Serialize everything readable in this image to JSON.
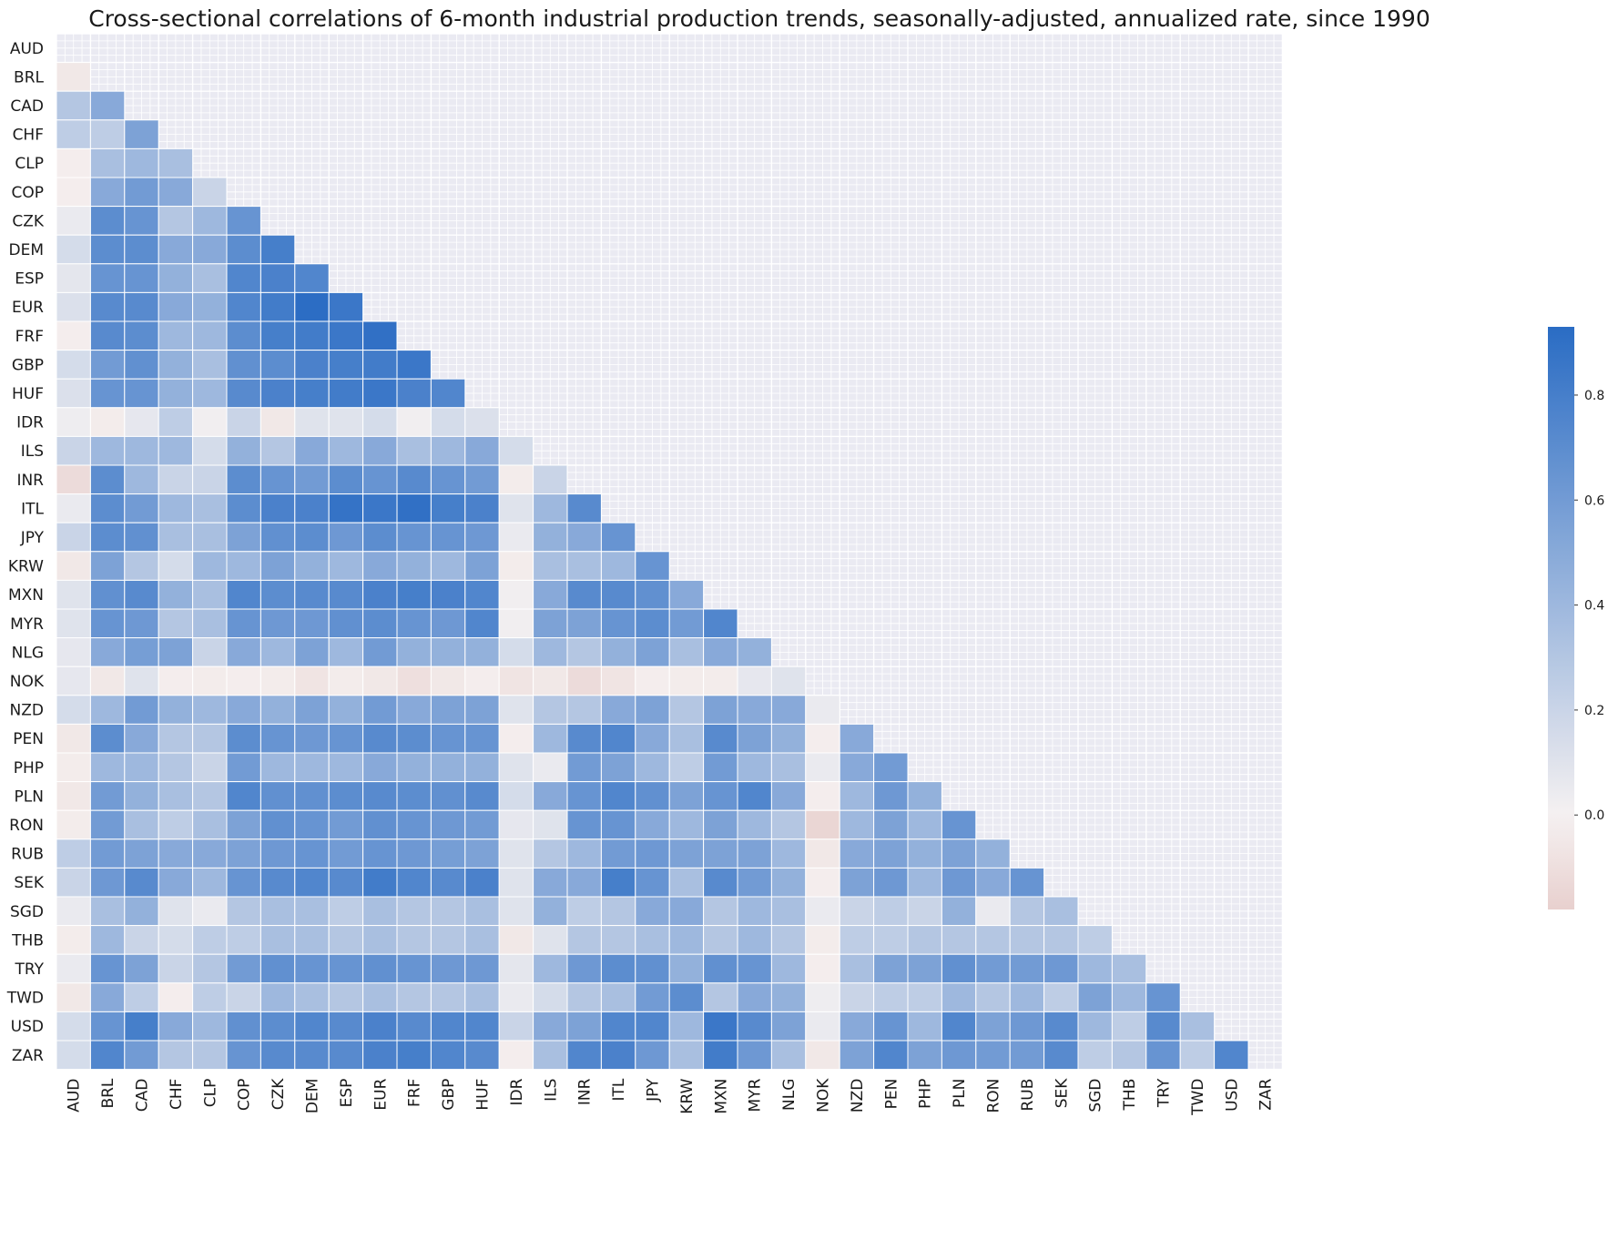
{
  "chart_data": {
    "type": "heatmap",
    "title": "Cross-sectional correlations of 6-month industrial production trends, seasonally-adjusted, annualized rate, since 1990",
    "labels": [
      "AUD",
      "BRL",
      "CAD",
      "CHF",
      "CLP",
      "COP",
      "CZK",
      "DEM",
      "ESP",
      "EUR",
      "FRF",
      "GBP",
      "HUF",
      "IDR",
      "ILS",
      "INR",
      "ITL",
      "JPY",
      "KRW",
      "MXN",
      "MYR",
      "NLG",
      "NOK",
      "NZD",
      "PEN",
      "PHP",
      "PLN",
      "RON",
      "RUB",
      "SEK",
      "SGD",
      "THB",
      "TRY",
      "TWD",
      "USD",
      "ZAR"
    ],
    "mask": "upper-triangle-including-diagonal",
    "matrix_rows": [
      [],
      [
        -0.05
      ],
      [
        0.3,
        0.5
      ],
      [
        0.25,
        0.25,
        0.55
      ],
      [
        -0.02,
        0.35,
        0.4,
        0.35
      ],
      [
        -0.02,
        0.5,
        0.6,
        0.5,
        0.2
      ],
      [
        0.05,
        0.7,
        0.65,
        0.3,
        0.4,
        0.65
      ],
      [
        0.15,
        0.7,
        0.7,
        0.5,
        0.5,
        0.7,
        0.8
      ],
      [
        0.08,
        0.65,
        0.65,
        0.45,
        0.35,
        0.75,
        0.78,
        0.75
      ],
      [
        0.12,
        0.72,
        0.72,
        0.5,
        0.45,
        0.75,
        0.82,
        0.92,
        0.85
      ],
      [
        -0.02,
        0.72,
        0.7,
        0.4,
        0.4,
        0.7,
        0.8,
        0.82,
        0.85,
        0.9
      ],
      [
        0.15,
        0.6,
        0.68,
        0.45,
        0.35,
        0.68,
        0.7,
        0.78,
        0.8,
        0.82,
        0.85
      ],
      [
        0.12,
        0.65,
        0.65,
        0.45,
        0.4,
        0.72,
        0.78,
        0.8,
        0.82,
        0.85,
        0.78,
        0.75
      ],
      [
        0.03,
        -0.03,
        0.07,
        0.25,
        0.02,
        0.2,
        -0.05,
        0.1,
        0.1,
        0.15,
        0.02,
        0.15,
        0.12
      ],
      [
        0.2,
        0.4,
        0.4,
        0.4,
        0.15,
        0.45,
        0.3,
        0.5,
        0.4,
        0.5,
        0.35,
        0.4,
        0.5,
        0.15
      ],
      [
        -0.12,
        0.7,
        0.4,
        0.2,
        0.2,
        0.7,
        0.65,
        0.6,
        0.7,
        0.65,
        0.72,
        0.65,
        0.6,
        -0.03,
        0.2
      ],
      [
        0.05,
        0.7,
        0.6,
        0.4,
        0.35,
        0.7,
        0.78,
        0.78,
        0.88,
        0.85,
        0.9,
        0.8,
        0.78,
        0.1,
        0.4,
        0.72
      ],
      [
        0.2,
        0.7,
        0.68,
        0.35,
        0.35,
        0.55,
        0.68,
        0.7,
        0.62,
        0.7,
        0.65,
        0.65,
        0.62,
        0.05,
        0.45,
        0.5,
        0.65
      ],
      [
        -0.05,
        0.55,
        0.3,
        0.15,
        0.4,
        0.4,
        0.55,
        0.45,
        0.4,
        0.5,
        0.45,
        0.4,
        0.55,
        -0.03,
        0.35,
        0.35,
        0.4,
        0.65
      ],
      [
        0.1,
        0.68,
        0.72,
        0.45,
        0.35,
        0.75,
        0.7,
        0.72,
        0.72,
        0.78,
        0.8,
        0.78,
        0.75,
        0.02,
        0.5,
        0.72,
        0.72,
        0.68,
        0.5
      ],
      [
        0.1,
        0.65,
        0.62,
        0.3,
        0.35,
        0.65,
        0.62,
        0.62,
        0.68,
        0.7,
        0.65,
        0.62,
        0.75,
        0.02,
        0.55,
        0.55,
        0.65,
        0.7,
        0.6,
        0.75
      ],
      [
        0.07,
        0.5,
        0.58,
        0.55,
        0.2,
        0.5,
        0.4,
        0.55,
        0.4,
        0.6,
        0.45,
        0.45,
        0.45,
        0.15,
        0.4,
        0.3,
        0.45,
        0.55,
        0.35,
        0.5,
        0.45
      ],
      [
        0.07,
        -0.05,
        0.1,
        -0.02,
        -0.03,
        -0.02,
        -0.03,
        -0.07,
        -0.03,
        -0.05,
        -0.1,
        -0.05,
        -0.02,
        -0.07,
        -0.05,
        -0.12,
        -0.07,
        -0.02,
        -0.03,
        -0.03,
        0.07,
        0.1
      ],
      [
        0.15,
        0.4,
        0.6,
        0.45,
        0.4,
        0.5,
        0.45,
        0.55,
        0.45,
        0.6,
        0.5,
        0.55,
        0.55,
        0.1,
        0.3,
        0.3,
        0.5,
        0.55,
        0.3,
        0.55,
        0.5,
        0.5,
        0.05
      ],
      [
        -0.05,
        0.7,
        0.5,
        0.3,
        0.3,
        0.7,
        0.65,
        0.62,
        0.65,
        0.72,
        0.7,
        0.65,
        0.65,
        -0.02,
        0.4,
        0.72,
        0.75,
        0.5,
        0.35,
        0.72,
        0.55,
        0.45,
        -0.02,
        0.5
      ],
      [
        -0.03,
        0.4,
        0.4,
        0.3,
        0.2,
        0.6,
        0.4,
        0.4,
        0.4,
        0.5,
        0.45,
        0.45,
        0.45,
        0.1,
        0.05,
        0.6,
        0.55,
        0.4,
        0.25,
        0.6,
        0.4,
        0.35,
        0.05,
        0.5,
        0.6
      ],
      [
        -0.05,
        0.6,
        0.45,
        0.35,
        0.3,
        0.75,
        0.68,
        0.68,
        0.7,
        0.72,
        0.7,
        0.68,
        0.72,
        0.15,
        0.5,
        0.65,
        0.75,
        0.68,
        0.55,
        0.65,
        0.75,
        0.5,
        -0.02,
        0.4,
        0.62,
        0.45
      ],
      [
        -0.03,
        0.6,
        0.35,
        0.25,
        0.35,
        0.55,
        0.68,
        0.65,
        0.6,
        0.68,
        0.65,
        0.62,
        0.6,
        0.07,
        0.1,
        0.65,
        0.65,
        0.5,
        0.4,
        0.55,
        0.4,
        0.3,
        -0.15,
        0.4,
        0.55,
        0.4,
        0.65
      ],
      [
        0.25,
        0.6,
        0.55,
        0.5,
        0.5,
        0.55,
        0.62,
        0.65,
        0.6,
        0.65,
        0.62,
        0.58,
        0.55,
        0.1,
        0.3,
        0.4,
        0.6,
        0.62,
        0.55,
        0.55,
        0.55,
        0.4,
        -0.05,
        0.5,
        0.55,
        0.45,
        0.55,
        0.45
      ],
      [
        0.2,
        0.62,
        0.72,
        0.5,
        0.4,
        0.65,
        0.72,
        0.75,
        0.72,
        0.82,
        0.75,
        0.72,
        0.78,
        0.1,
        0.5,
        0.5,
        0.8,
        0.65,
        0.35,
        0.72,
        0.6,
        0.45,
        -0.02,
        0.55,
        0.62,
        0.4,
        0.62,
        0.5,
        0.65
      ],
      [
        0.05,
        0.35,
        0.45,
        0.1,
        0.05,
        0.3,
        0.35,
        0.35,
        0.25,
        0.35,
        0.3,
        0.3,
        0.35,
        0.1,
        0.45,
        0.25,
        0.3,
        0.5,
        0.5,
        0.3,
        0.4,
        0.35,
        0.05,
        0.2,
        0.25,
        0.2,
        0.45,
        0.05,
        0.3,
        0.35
      ],
      [
        -0.03,
        0.4,
        0.2,
        0.15,
        0.25,
        0.25,
        0.35,
        0.35,
        0.3,
        0.35,
        0.3,
        0.3,
        0.35,
        -0.05,
        0.1,
        0.3,
        0.3,
        0.35,
        0.4,
        0.3,
        0.4,
        0.3,
        -0.03,
        0.25,
        0.25,
        0.3,
        0.3,
        0.3,
        0.3,
        0.3,
        0.25
      ],
      [
        0.05,
        0.65,
        0.55,
        0.2,
        0.3,
        0.6,
        0.68,
        0.65,
        0.65,
        0.68,
        0.65,
        0.62,
        0.62,
        0.08,
        0.4,
        0.62,
        0.7,
        0.68,
        0.45,
        0.68,
        0.65,
        0.4,
        -0.02,
        0.35,
        0.55,
        0.55,
        0.68,
        0.6,
        0.6,
        0.62,
        0.4,
        0.35
      ],
      [
        -0.05,
        0.5,
        0.25,
        -0.02,
        0.25,
        0.2,
        0.4,
        0.35,
        0.3,
        0.35,
        0.3,
        0.3,
        0.35,
        0.05,
        0.15,
        0.3,
        0.35,
        0.6,
        0.7,
        0.3,
        0.5,
        0.45,
        0.03,
        0.2,
        0.25,
        0.25,
        0.4,
        0.3,
        0.4,
        0.25,
        0.55,
        0.4,
        0.65
      ],
      [
        0.15,
        0.65,
        0.8,
        0.5,
        0.4,
        0.68,
        0.7,
        0.75,
        0.72,
        0.78,
        0.72,
        0.75,
        0.75,
        0.2,
        0.5,
        0.55,
        0.75,
        0.75,
        0.4,
        0.85,
        0.72,
        0.55,
        0.05,
        0.5,
        0.65,
        0.4,
        0.75,
        0.55,
        0.62,
        0.72,
        0.4,
        0.25,
        0.72,
        0.35
      ],
      [
        0.15,
        0.75,
        0.6,
        0.3,
        0.3,
        0.65,
        0.72,
        0.72,
        0.72,
        0.78,
        0.8,
        0.75,
        0.72,
        -0.02,
        0.35,
        0.75,
        0.78,
        0.62,
        0.35,
        0.82,
        0.62,
        0.35,
        -0.05,
        0.55,
        0.75,
        0.55,
        0.62,
        0.6,
        0.6,
        0.72,
        0.25,
        0.3,
        0.65,
        0.25,
        0.75
      ]
    ],
    "colorbar": {
      "ticks": [
        "0.0",
        "0.2",
        "0.4",
        "0.6",
        "0.8"
      ],
      "range": [
        -0.18,
        0.93
      ],
      "colors": {
        "negative": "#e8d0ce",
        "zero": "#f5f1f1",
        "positive": "#2a6cc4"
      }
    },
    "grid": true,
    "background_color": "#eaeaf2",
    "grid_color": "#ffffff"
  }
}
